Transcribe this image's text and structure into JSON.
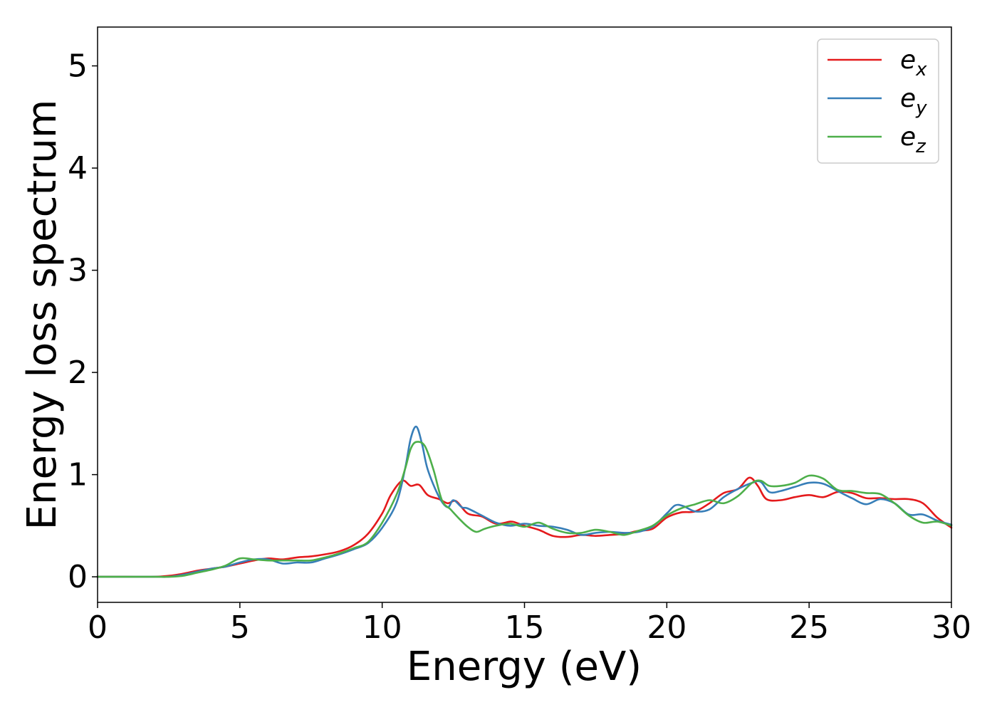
{
  "chart_data": {
    "type": "line",
    "title": "",
    "xlabel": "Energy (eV)",
    "ylabel": "Energy loss spectrum",
    "xlim": [
      0,
      30
    ],
    "ylim": [
      -0.25,
      5.38
    ],
    "xticks": [
      "0",
      "5",
      "10",
      "15",
      "20",
      "25",
      "30"
    ],
    "yticks": [
      "0",
      "1",
      "2",
      "3",
      "4",
      "5"
    ],
    "grid": false,
    "legend_position": "top-right",
    "series": [
      {
        "name": "e_x",
        "label_main": "e",
        "label_sub": "x",
        "color": "#e41a1c",
        "x": [
          0,
          1,
          2,
          2.5,
          3,
          3.5,
          4,
          4.5,
          5,
          5.5,
          6,
          6.5,
          7,
          7.5,
          8,
          8.5,
          9,
          9.5,
          10,
          10.3,
          10.7,
          11,
          11.3,
          11.6,
          12,
          12.3,
          12.6,
          13,
          13.5,
          14,
          14.5,
          14.7,
          15,
          15.5,
          16,
          16.5,
          17,
          17.5,
          18,
          18.5,
          19,
          19.5,
          20,
          20.5,
          21,
          21.5,
          22,
          22.5,
          22.9,
          23.2,
          23.5,
          24,
          24.5,
          25,
          25.5,
          26,
          26.5,
          27,
          27.5,
          28,
          28.5,
          29,
          29.5,
          30
        ],
        "y": [
          0,
          0,
          0,
          0.01,
          0.03,
          0.06,
          0.08,
          0.1,
          0.13,
          0.16,
          0.18,
          0.17,
          0.19,
          0.2,
          0.22,
          0.25,
          0.31,
          0.42,
          0.62,
          0.8,
          0.94,
          0.89,
          0.9,
          0.8,
          0.76,
          0.72,
          0.74,
          0.62,
          0.59,
          0.52,
          0.54,
          0.53,
          0.5,
          0.46,
          0.4,
          0.39,
          0.41,
          0.4,
          0.41,
          0.42,
          0.45,
          0.47,
          0.58,
          0.63,
          0.64,
          0.72,
          0.82,
          0.86,
          0.97,
          0.89,
          0.76,
          0.75,
          0.78,
          0.8,
          0.78,
          0.83,
          0.82,
          0.77,
          0.77,
          0.76,
          0.76,
          0.72,
          0.58,
          0.48
        ]
      },
      {
        "name": "e_y",
        "label_main": "e",
        "label_sub": "y",
        "color": "#377eb8",
        "x": [
          0,
          1,
          2,
          2.5,
          3,
          3.5,
          4,
          4.5,
          5,
          5.5,
          6,
          6.5,
          7,
          7.5,
          8,
          8.5,
          9,
          9.5,
          10,
          10.5,
          10.8,
          11,
          11.2,
          11.4,
          11.6,
          12,
          12.3,
          12.5,
          12.8,
          13,
          13.5,
          14,
          14.5,
          15,
          15.5,
          16,
          16.5,
          17,
          17.5,
          18,
          18.5,
          19,
          19.5,
          20,
          20.3,
          20.6,
          21,
          21.5,
          22,
          22.5,
          23,
          23.3,
          23.6,
          24,
          24.5,
          25,
          25.5,
          26,
          26.5,
          27,
          27.5,
          28,
          28.5,
          29,
          29.5,
          30
        ],
        "y": [
          0,
          0,
          0,
          0,
          0.02,
          0.05,
          0.08,
          0.1,
          0.14,
          0.17,
          0.17,
          0.13,
          0.14,
          0.14,
          0.18,
          0.22,
          0.27,
          0.33,
          0.48,
          0.72,
          1.05,
          1.35,
          1.47,
          1.3,
          1.05,
          0.78,
          0.68,
          0.75,
          0.68,
          0.67,
          0.6,
          0.53,
          0.5,
          0.52,
          0.5,
          0.49,
          0.46,
          0.41,
          0.43,
          0.44,
          0.43,
          0.44,
          0.49,
          0.62,
          0.7,
          0.69,
          0.64,
          0.66,
          0.78,
          0.86,
          0.92,
          0.93,
          0.83,
          0.84,
          0.88,
          0.92,
          0.91,
          0.84,
          0.77,
          0.71,
          0.76,
          0.72,
          0.61,
          0.61,
          0.55,
          0.51
        ]
      },
      {
        "name": "e_z",
        "label_main": "e",
        "label_sub": "z",
        "color": "#4daf4a",
        "x": [
          0,
          1,
          2,
          2.5,
          3,
          3.5,
          4,
          4.5,
          5,
          5.5,
          6,
          6.5,
          7,
          7.5,
          8,
          8.5,
          9,
          9.5,
          10,
          10.5,
          10.8,
          11,
          11.2,
          11.5,
          11.8,
          12.1,
          12.4,
          12.7,
          13,
          13.3,
          13.6,
          14,
          14.5,
          15,
          15.5,
          16,
          16.5,
          17,
          17.5,
          18,
          18.5,
          19,
          19.5,
          20,
          20.5,
          21,
          21.5,
          22,
          22.5,
          23,
          23.3,
          23.6,
          24,
          24.5,
          25,
          25.5,
          26,
          26.5,
          27,
          27.5,
          28,
          28.5,
          29,
          29.5,
          30
        ],
        "y": [
          0,
          0,
          0,
          0,
          0.01,
          0.04,
          0.07,
          0.11,
          0.18,
          0.17,
          0.16,
          0.16,
          0.16,
          0.16,
          0.19,
          0.23,
          0.28,
          0.34,
          0.53,
          0.8,
          1.05,
          1.25,
          1.32,
          1.28,
          1.05,
          0.75,
          0.66,
          0.57,
          0.49,
          0.44,
          0.47,
          0.5,
          0.52,
          0.49,
          0.53,
          0.47,
          0.43,
          0.43,
          0.46,
          0.44,
          0.41,
          0.45,
          0.5,
          0.6,
          0.67,
          0.71,
          0.75,
          0.72,
          0.79,
          0.92,
          0.94,
          0.89,
          0.89,
          0.92,
          0.99,
          0.96,
          0.85,
          0.84,
          0.82,
          0.81,
          0.72,
          0.6,
          0.53,
          0.54,
          0.5
        ]
      }
    ]
  }
}
